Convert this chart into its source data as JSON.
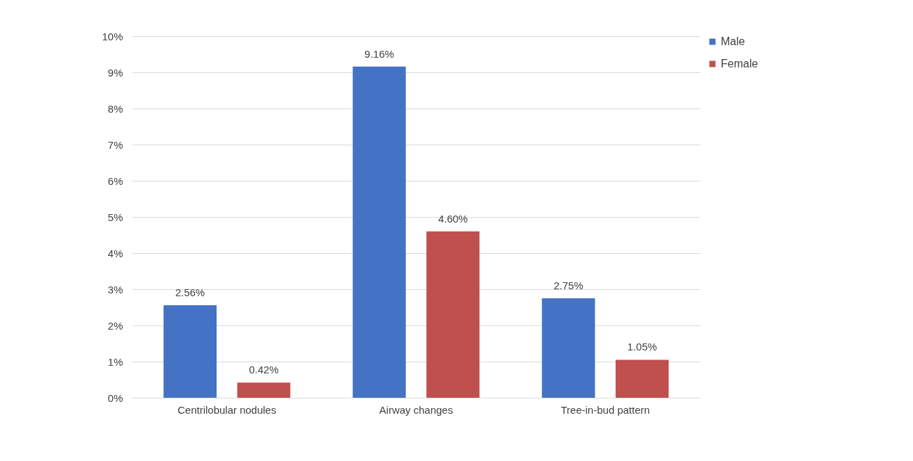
{
  "chart_data": {
    "type": "bar",
    "categories": [
      "Centrilobular nodules",
      "Airway changes",
      "Tree-in-bud pattern"
    ],
    "series": [
      {
        "name": "Male",
        "color": "#4472c4",
        "values": [
          2.56,
          9.16,
          2.75
        ],
        "value_labels": [
          "2.56%",
          "9.16%",
          "2.75%"
        ]
      },
      {
        "name": "Female",
        "color": "#c0504d",
        "values": [
          0.42,
          4.6,
          1.05
        ],
        "value_labels": [
          "0.42%",
          "4.60%",
          "1.05%"
        ]
      }
    ],
    "ylim": [
      0,
      10
    ],
    "yticks": [
      {
        "value": 0,
        "label": "0%"
      },
      {
        "value": 1,
        "label": "1%"
      },
      {
        "value": 2,
        "label": "2%"
      },
      {
        "value": 3,
        "label": "3%"
      },
      {
        "value": 4,
        "label": "4%"
      },
      {
        "value": 5,
        "label": "5%"
      },
      {
        "value": 6,
        "label": "6%"
      },
      {
        "value": 7,
        "label": "7%"
      },
      {
        "value": 8,
        "label": "8%"
      },
      {
        "value": 9,
        "label": "9%"
      },
      {
        "value": 10,
        "label": "10%"
      }
    ],
    "grid": "y",
    "legend": "right"
  }
}
